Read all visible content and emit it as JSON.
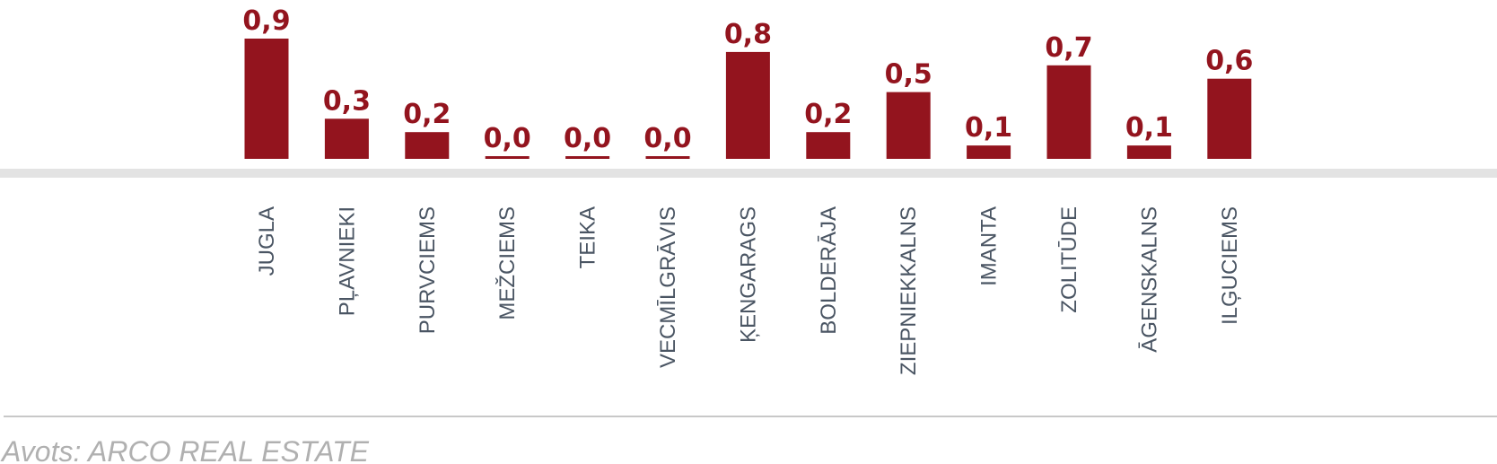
{
  "colors": {
    "bar": "#93141e",
    "value_label": "#93141e",
    "category_label": "#4a5563",
    "axis_band": "#e3e3e3",
    "divider": "#c8c8c8",
    "source": "#b0b0b0"
  },
  "chart_data": {
    "type": "bar",
    "title": "",
    "xlabel": "",
    "ylabel": "",
    "ylim": [
      0,
      0.9
    ],
    "grid": false,
    "categories": [
      "JUGLA",
      "PĻAVNIEKI",
      "PURVCIEMS",
      "MEŽCIEMS",
      "TEIKA",
      "VECMĪLGRĀVIS",
      "ĶENGARAGS",
      "BOLDERĀJA",
      "ZIEPNIEKKALNS",
      "IMANTA",
      "ZOLITŪDE",
      "ĀGENSKALNS",
      "ILĢUCIEMS"
    ],
    "values": [
      0.9,
      0.3,
      0.2,
      0.0,
      0.0,
      0.0,
      0.8,
      0.2,
      0.5,
      0.1,
      0.7,
      0.1,
      0.6
    ],
    "value_labels": [
      "0,9",
      "0,3",
      "0,2",
      "0,0",
      "0,0",
      "0,0",
      "0,8",
      "0,2",
      "0,5",
      "0,1",
      "0,7",
      "0,1",
      "0,6"
    ]
  },
  "source": {
    "text": "Avots: ARCO REAL ESTATE"
  }
}
